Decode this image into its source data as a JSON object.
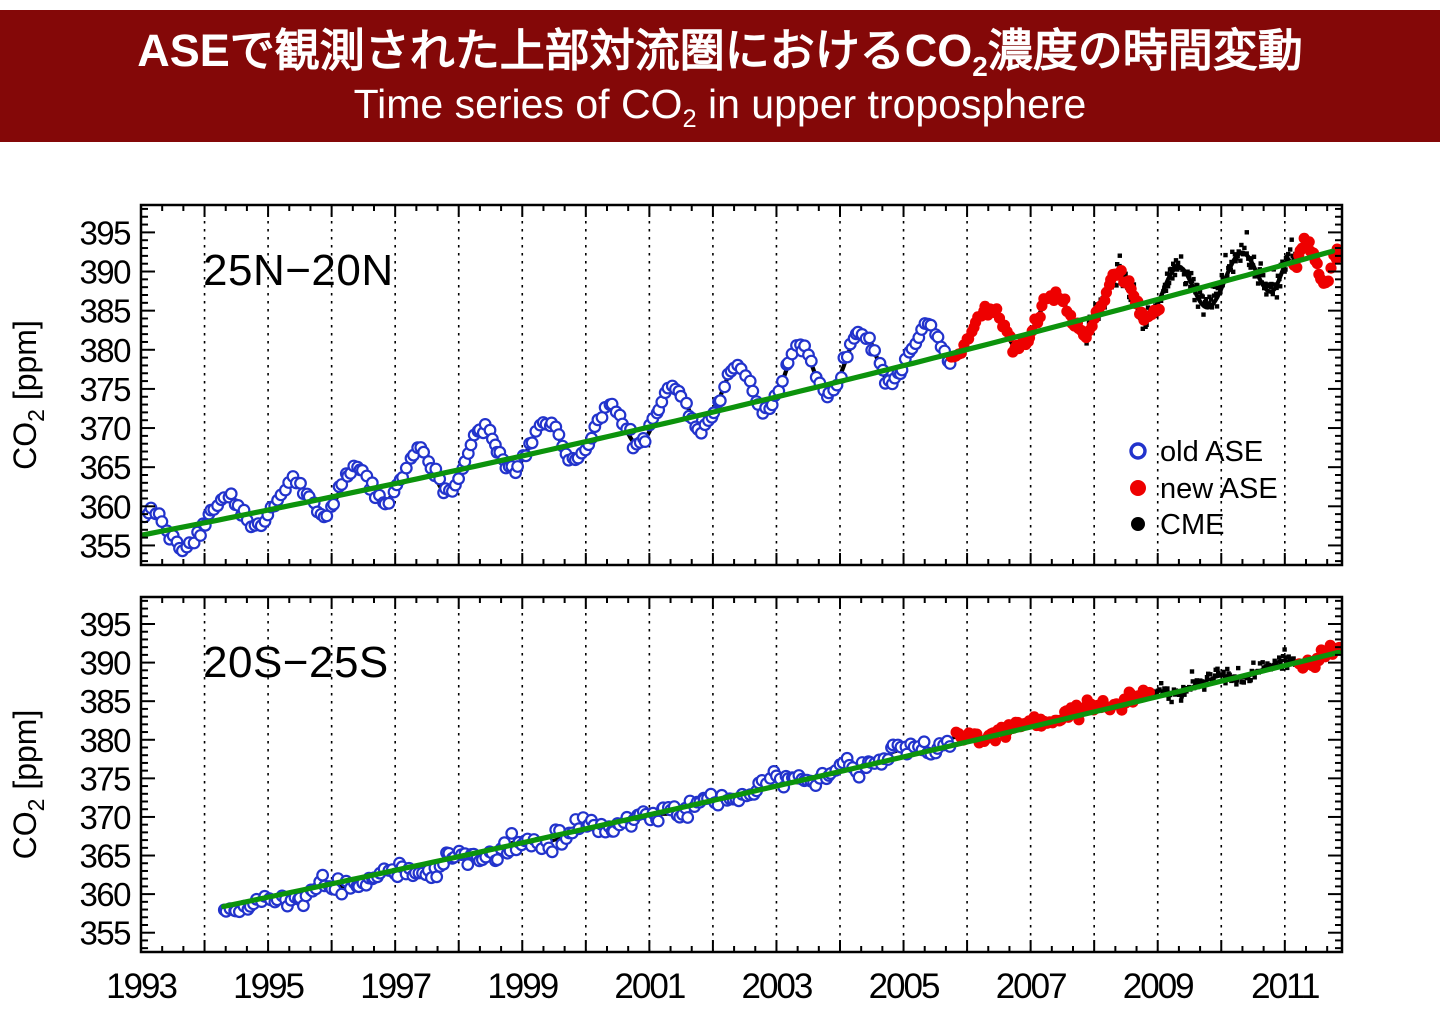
{
  "header": {
    "bg_color": "#840808",
    "text_color": "#ffffff",
    "title_jp_pre": "ASEで観測された上部対流圏におけるCO",
    "title_jp_sub": "2",
    "title_jp_post": "濃度の時間変動",
    "title_en_pre": "Time series of CO",
    "title_en_sub": "2",
    "title_en_post": " in upper troposphere"
  },
  "chart_data": [
    {
      "type": "scatter",
      "panel": "top",
      "region_label": "25N−20N",
      "ylabel_pre": "CO",
      "ylabel_sub": "2",
      "ylabel_post": " [ppm]",
      "xlim": [
        1993.0,
        2011.9
      ],
      "ylim": [
        352.5,
        398.5
      ],
      "yticks": [
        355,
        360,
        365,
        370,
        375,
        380,
        385,
        390,
        395
      ],
      "xgrid_years": [
        1994,
        1995,
        1996,
        1997,
        1998,
        1999,
        2000,
        2001,
        2002,
        2003,
        2004,
        2005,
        2006,
        2007,
        2008,
        2009,
        2010,
        2011
      ],
      "show_xtick_labels": false,
      "legend": {
        "items": [
          {
            "label": "old ASE",
            "marker": "open-circle",
            "color": "#2233cc"
          },
          {
            "label": "new ASE",
            "marker": "filled-circle",
            "color": "#ee0000"
          },
          {
            "label": "CME",
            "marker": "filled-dot",
            "color": "#000000"
          }
        ]
      },
      "trend_line": {
        "name": "growth trend",
        "color": "#0c930c",
        "points": [
          [
            1993.0,
            356.3
          ],
          [
            2002.5,
            373.0
          ],
          [
            2011.88,
            392.9
          ]
        ]
      },
      "cme_line": {
        "name": "CME model curve",
        "color": "#000000",
        "width": 4.2,
        "extremes": [
          [
            1993.05,
            358.3
          ],
          [
            1993.18,
            359.2
          ],
          [
            1993.65,
            354.5
          ],
          [
            1994.38,
            361.3
          ],
          [
            1994.82,
            357.2
          ],
          [
            1995.4,
            363.4
          ],
          [
            1995.85,
            358.8
          ],
          [
            1996.4,
            365.0
          ],
          [
            1996.82,
            360.6
          ],
          [
            1997.4,
            367.4
          ],
          [
            1997.8,
            361.8
          ],
          [
            1998.4,
            369.9
          ],
          [
            1998.82,
            364.6
          ],
          [
            1999.4,
            370.8
          ],
          [
            1999.8,
            365.8
          ],
          [
            2000.4,
            372.7
          ],
          [
            2000.82,
            367.9
          ],
          [
            2001.4,
            375.4
          ],
          [
            2001.82,
            369.8
          ],
          [
            2002.4,
            378.0
          ],
          [
            2002.82,
            371.9
          ],
          [
            2003.38,
            380.3
          ],
          [
            2003.8,
            374.3
          ],
          [
            2004.35,
            382.3
          ],
          [
            2004.8,
            375.9
          ],
          [
            2005.4,
            383.4
          ],
          [
            2005.75,
            378.6
          ],
          [
            2006.38,
            385.3
          ],
          [
            2006.8,
            380.2
          ],
          [
            2007.38,
            387.2
          ],
          [
            2007.82,
            382.1
          ],
          [
            2008.4,
            389.4
          ],
          [
            2008.82,
            384.0
          ],
          [
            2009.33,
            390.6
          ],
          [
            2009.78,
            385.4
          ],
          [
            2010.33,
            392.4
          ],
          [
            2010.78,
            387.4
          ],
          [
            2011.1,
            391.8
          ]
        ]
      },
      "series": [
        {
          "name": "CME",
          "marker": "dot",
          "color": "#000000",
          "sigma": 0.7,
          "spacing": 0.016,
          "xjitter": 0.006,
          "outlier_p": 0.12,
          "outlier_mag": 2.6,
          "extremes": [
            [
              2007.85,
              382.2
            ],
            [
              2008.4,
              389.2
            ],
            [
              2008.82,
              384.0
            ],
            [
              2009.33,
              390.6
            ],
            [
              2009.78,
              385.4
            ],
            [
              2010.33,
              392.4
            ],
            [
              2010.78,
              387.4
            ],
            [
              2011.1,
              391.8
            ],
            [
              2011.25,
              391.2
            ]
          ]
        },
        {
          "name": "old ASE",
          "marker": "open-circle",
          "color": "#2233cc",
          "sigma": 0.38,
          "spacing": 0.052,
          "xjitter": 0.016,
          "outlier_p": 0,
          "outlier_mag": 0,
          "extremes": [
            [
              1993.05,
              358.3
            ],
            [
              1993.18,
              359.2
            ],
            [
              1993.65,
              354.7
            ],
            [
              1994.38,
              361.3
            ],
            [
              1994.82,
              357.3
            ],
            [
              1995.4,
              363.4
            ],
            [
              1995.85,
              358.9
            ],
            [
              1996.4,
              365.0
            ],
            [
              1996.82,
              360.7
            ],
            [
              1997.4,
              367.4
            ],
            [
              1997.8,
              361.9
            ],
            [
              1998.4,
              369.9
            ],
            [
              1998.82,
              364.7
            ],
            [
              1999.4,
              370.8
            ],
            [
              1999.8,
              365.9
            ],
            [
              2000.4,
              372.7
            ],
            [
              2000.82,
              368.0
            ],
            [
              2001.4,
              375.4
            ],
            [
              2001.82,
              369.9
            ],
            [
              2002.4,
              378.0
            ],
            [
              2002.82,
              372.0
            ],
            [
              2003.38,
              380.3
            ],
            [
              2003.8,
              374.4
            ],
            [
              2004.35,
              382.3
            ],
            [
              2004.8,
              376.0
            ],
            [
              2005.4,
              383.4
            ],
            [
              2005.75,
              378.6
            ]
          ]
        },
        {
          "name": "new ASE",
          "marker": "filled-circle",
          "color": "#ee0000",
          "sigma": 0.38,
          "spacing": 0.038,
          "xjitter": 0.01,
          "outlier_p": 0,
          "outlier_mag": 0,
          "extremes": [
            [
              2005.75,
              378.8
            ],
            [
              2006.38,
              385.3
            ],
            [
              2006.8,
              380.2
            ],
            [
              2007.38,
              387.2
            ],
            [
              2007.82,
              382.1
            ],
            [
              2008.4,
              389.6
            ],
            [
              2008.82,
              383.9
            ],
            [
              2009.05,
              385.6
            ]
          ]
        },
        {
          "name": "new ASE",
          "marker": "filled-circle",
          "color": "#ee0000",
          "sigma": 0.35,
          "spacing": 0.034,
          "xjitter": 0.008,
          "outlier_p": 0,
          "outlier_mag": 0,
          "extremes": [
            [
              2011.15,
              390.6
            ],
            [
              2011.33,
              394.0
            ],
            [
              2011.62,
              388.9
            ],
            [
              2011.88,
              392.9
            ]
          ]
        }
      ]
    },
    {
      "type": "scatter",
      "panel": "bottom",
      "region_label": "20S−25S",
      "ylabel_pre": "CO",
      "ylabel_sub": "2",
      "ylabel_post": " [ppm]",
      "xlim": [
        1993.0,
        2011.9
      ],
      "ylim": [
        352.5,
        398.5
      ],
      "yticks": [
        355,
        360,
        365,
        370,
        375,
        380,
        385,
        390,
        395
      ],
      "xgrid_years": [
        1994,
        1995,
        1996,
        1997,
        1998,
        1999,
        2000,
        2001,
        2002,
        2003,
        2004,
        2005,
        2006,
        2007,
        2008,
        2009,
        2010,
        2011
      ],
      "show_xtick_labels": true,
      "xtick_labels": [
        1993,
        1995,
        1997,
        1999,
        2001,
        2003,
        2005,
        2007,
        2009,
        2011
      ],
      "seasonal": {
        "amp": 0.45,
        "phase": 0.88
      },
      "trend_line": {
        "name": "growth trend",
        "color": "#0c930c",
        "points": [
          [
            1994.3,
            358.4
          ],
          [
            2003.0,
            374.0
          ],
          [
            2011.88,
            391.4
          ]
        ]
      },
      "cme_line": {
        "name": "CME model curve",
        "color": "#000000",
        "width": 3.2,
        "extremes": [
          [
            1994.3,
            358.4
          ],
          [
            1994.55,
            357.8
          ],
          [
            1995.0,
            359.4
          ],
          [
            1995.5,
            359.9
          ],
          [
            1996.0,
            360.9
          ],
          [
            1996.5,
            361.7
          ],
          [
            1997.0,
            362.6
          ],
          [
            1997.5,
            363.3
          ],
          [
            1998.0,
            364.6
          ],
          [
            1998.5,
            365.4
          ],
          [
            1999.0,
            366.5
          ],
          [
            1999.5,
            367.3
          ],
          [
            2000.1,
            369.0
          ],
          [
            2000.5,
            368.9
          ],
          [
            2001.0,
            370.3
          ],
          [
            2001.5,
            371.0
          ],
          [
            2002.0,
            372.2
          ],
          [
            2002.5,
            373.1
          ],
          [
            2002.85,
            374.6
          ],
          [
            2003.2,
            374.8
          ],
          [
            2003.6,
            375.0
          ],
          [
            2004.0,
            376.2
          ],
          [
            2004.5,
            377.1
          ],
          [
            2005.0,
            378.2
          ],
          [
            2005.4,
            379.0
          ],
          [
            2005.82,
            379.9
          ],
          [
            2006.2,
            380.5
          ],
          [
            2006.7,
            381.4
          ],
          [
            2007.2,
            382.4
          ],
          [
            2007.7,
            383.3
          ],
          [
            2008.2,
            384.4
          ],
          [
            2008.6,
            385.2
          ],
          [
            2009.2,
            386.3
          ],
          [
            2009.7,
            387.3
          ],
          [
            2010.2,
            388.3
          ],
          [
            2010.7,
            389.1
          ],
          [
            2011.0,
            389.9
          ],
          [
            2011.3,
            390.4
          ]
        ]
      },
      "series": [
        {
          "name": "CME",
          "marker": "dot",
          "color": "#000000",
          "sigma": 0.5,
          "spacing": 0.02,
          "xjitter": 0.006,
          "outlier_p": 0.06,
          "outlier_mag": 1.4,
          "extremes": [
            [
              2008.78,
              385.6
            ],
            [
              2009.2,
              386.3
            ],
            [
              2009.7,
              387.3
            ],
            [
              2010.2,
              388.3
            ],
            [
              2010.7,
              389.1
            ],
            [
              2011.0,
              389.9
            ],
            [
              2011.3,
              390.4
            ]
          ]
        },
        {
          "name": "old ASE",
          "marker": "open-circle",
          "color": "#2233cc",
          "sigma": 0.55,
          "spacing": 0.05,
          "xjitter": 0.016,
          "outlier_p": 0,
          "outlier_mag": 0,
          "extremes": [
            [
              1994.3,
              358.4
            ],
            [
              1994.55,
              357.8
            ],
            [
              1995.0,
              359.4
            ],
            [
              1995.5,
              359.9
            ],
            [
              1996.0,
              360.9
            ],
            [
              1996.5,
              361.7
            ],
            [
              1997.0,
              362.6
            ],
            [
              1997.5,
              363.3
            ],
            [
              1998.0,
              364.6
            ],
            [
              1998.5,
              365.4
            ],
            [
              1999.0,
              366.5
            ],
            [
              1999.5,
              367.3
            ],
            [
              2000.1,
              369.0
            ],
            [
              2000.5,
              368.9
            ],
            [
              2001.0,
              370.3
            ],
            [
              2001.5,
              371.0
            ],
            [
              2002.0,
              372.2
            ],
            [
              2002.5,
              373.1
            ],
            [
              2002.85,
              374.6
            ],
            [
              2003.2,
              374.8
            ],
            [
              2003.6,
              375.0
            ],
            [
              2004.0,
              376.2
            ],
            [
              2004.5,
              377.1
            ],
            [
              2005.0,
              378.2
            ],
            [
              2005.4,
              379.0
            ],
            [
              2005.78,
              379.6
            ]
          ]
        },
        {
          "name": "new ASE",
          "marker": "filled-circle",
          "color": "#ee0000",
          "sigma": 0.45,
          "spacing": 0.038,
          "xjitter": 0.01,
          "outlier_p": 0.04,
          "outlier_mag": 1.2,
          "extremes": [
            [
              2005.82,
              379.9
            ],
            [
              2006.2,
              380.5
            ],
            [
              2006.7,
              381.4
            ],
            [
              2007.2,
              382.4
            ],
            [
              2007.7,
              383.3
            ],
            [
              2008.2,
              384.4
            ],
            [
              2008.6,
              385.2
            ],
            [
              2008.88,
              385.9
            ]
          ]
        },
        {
          "name": "new ASE",
          "marker": "filled-circle",
          "color": "#ee0000",
          "sigma": 0.4,
          "spacing": 0.034,
          "xjitter": 0.008,
          "outlier_p": 0,
          "outlier_mag": 0,
          "extremes": [
            [
              2011.22,
              390.4
            ],
            [
              2011.45,
              390.5
            ],
            [
              2011.65,
              391.1
            ],
            [
              2011.88,
              391.4
            ]
          ]
        }
      ]
    }
  ]
}
